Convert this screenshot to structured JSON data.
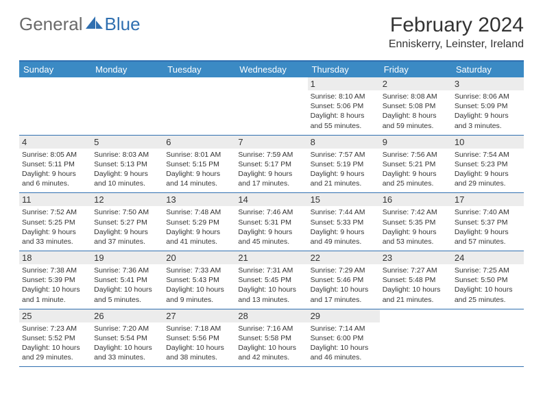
{
  "brand": {
    "part1": "General",
    "part2": "Blue"
  },
  "title": "February 2024",
  "location": "Enniskerry, Leinster, Ireland",
  "colors": {
    "header_bar": "#3b8ac4",
    "border": "#2f6fb0",
    "daynum_bg": "#ececec",
    "text": "#333333",
    "logo_gray": "#6a6a6a",
    "logo_blue": "#2f6fb0",
    "background": "#ffffff"
  },
  "typography": {
    "title_fontsize": 30,
    "location_fontsize": 16,
    "dayheader_fontsize": 13,
    "detail_fontsize": 10.5
  },
  "day_names": [
    "Sunday",
    "Monday",
    "Tuesday",
    "Wednesday",
    "Thursday",
    "Friday",
    "Saturday"
  ],
  "weeks": [
    [
      null,
      null,
      null,
      null,
      {
        "n": "1",
        "sr": "8:10 AM",
        "ss": "5:06 PM",
        "dl": "8 hours and 55 minutes."
      },
      {
        "n": "2",
        "sr": "8:08 AM",
        "ss": "5:08 PM",
        "dl": "8 hours and 59 minutes."
      },
      {
        "n": "3",
        "sr": "8:06 AM",
        "ss": "5:09 PM",
        "dl": "9 hours and 3 minutes."
      }
    ],
    [
      {
        "n": "4",
        "sr": "8:05 AM",
        "ss": "5:11 PM",
        "dl": "9 hours and 6 minutes."
      },
      {
        "n": "5",
        "sr": "8:03 AM",
        "ss": "5:13 PM",
        "dl": "9 hours and 10 minutes."
      },
      {
        "n": "6",
        "sr": "8:01 AM",
        "ss": "5:15 PM",
        "dl": "9 hours and 14 minutes."
      },
      {
        "n": "7",
        "sr": "7:59 AM",
        "ss": "5:17 PM",
        "dl": "9 hours and 17 minutes."
      },
      {
        "n": "8",
        "sr": "7:57 AM",
        "ss": "5:19 PM",
        "dl": "9 hours and 21 minutes."
      },
      {
        "n": "9",
        "sr": "7:56 AM",
        "ss": "5:21 PM",
        "dl": "9 hours and 25 minutes."
      },
      {
        "n": "10",
        "sr": "7:54 AM",
        "ss": "5:23 PM",
        "dl": "9 hours and 29 minutes."
      }
    ],
    [
      {
        "n": "11",
        "sr": "7:52 AM",
        "ss": "5:25 PM",
        "dl": "9 hours and 33 minutes."
      },
      {
        "n": "12",
        "sr": "7:50 AM",
        "ss": "5:27 PM",
        "dl": "9 hours and 37 minutes."
      },
      {
        "n": "13",
        "sr": "7:48 AM",
        "ss": "5:29 PM",
        "dl": "9 hours and 41 minutes."
      },
      {
        "n": "14",
        "sr": "7:46 AM",
        "ss": "5:31 PM",
        "dl": "9 hours and 45 minutes."
      },
      {
        "n": "15",
        "sr": "7:44 AM",
        "ss": "5:33 PM",
        "dl": "9 hours and 49 minutes."
      },
      {
        "n": "16",
        "sr": "7:42 AM",
        "ss": "5:35 PM",
        "dl": "9 hours and 53 minutes."
      },
      {
        "n": "17",
        "sr": "7:40 AM",
        "ss": "5:37 PM",
        "dl": "9 hours and 57 minutes."
      }
    ],
    [
      {
        "n": "18",
        "sr": "7:38 AM",
        "ss": "5:39 PM",
        "dl": "10 hours and 1 minute."
      },
      {
        "n": "19",
        "sr": "7:36 AM",
        "ss": "5:41 PM",
        "dl": "10 hours and 5 minutes."
      },
      {
        "n": "20",
        "sr": "7:33 AM",
        "ss": "5:43 PM",
        "dl": "10 hours and 9 minutes."
      },
      {
        "n": "21",
        "sr": "7:31 AM",
        "ss": "5:45 PM",
        "dl": "10 hours and 13 minutes."
      },
      {
        "n": "22",
        "sr": "7:29 AM",
        "ss": "5:46 PM",
        "dl": "10 hours and 17 minutes."
      },
      {
        "n": "23",
        "sr": "7:27 AM",
        "ss": "5:48 PM",
        "dl": "10 hours and 21 minutes."
      },
      {
        "n": "24",
        "sr": "7:25 AM",
        "ss": "5:50 PM",
        "dl": "10 hours and 25 minutes."
      }
    ],
    [
      {
        "n": "25",
        "sr": "7:23 AM",
        "ss": "5:52 PM",
        "dl": "10 hours and 29 minutes."
      },
      {
        "n": "26",
        "sr": "7:20 AM",
        "ss": "5:54 PM",
        "dl": "10 hours and 33 minutes."
      },
      {
        "n": "27",
        "sr": "7:18 AM",
        "ss": "5:56 PM",
        "dl": "10 hours and 38 minutes."
      },
      {
        "n": "28",
        "sr": "7:16 AM",
        "ss": "5:58 PM",
        "dl": "10 hours and 42 minutes."
      },
      {
        "n": "29",
        "sr": "7:14 AM",
        "ss": "6:00 PM",
        "dl": "10 hours and 46 minutes."
      },
      null,
      null
    ]
  ],
  "labels": {
    "sunrise": "Sunrise:",
    "sunset": "Sunset:",
    "daylight": "Daylight:"
  }
}
